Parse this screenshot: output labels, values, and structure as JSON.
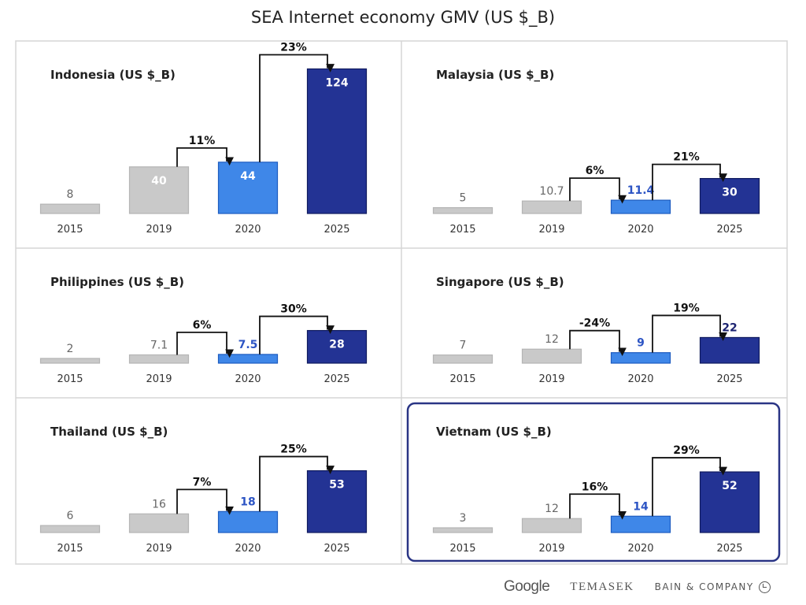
{
  "title": "SEA Internet economy GMV (US $_B)",
  "logos": {
    "google": "Google",
    "temasek": "TEMASEK",
    "bain": "BAIN & COMPANY"
  },
  "colors": {
    "y2015": "#c9c9c9",
    "y2019": "#c9c9c9",
    "y2020": "#3f87e8",
    "y2025": "#233394",
    "highlight_border": "#2a3585",
    "value_blue": "#2c54c4"
  },
  "chart_data": [
    {
      "type": "bar",
      "title": "Indonesia (US $_B)",
      "categories": [
        "2015",
        "2019",
        "2020",
        "2025"
      ],
      "values": [
        8,
        40,
        44,
        124
      ],
      "growth": [
        {
          "from": "2019",
          "to": "2020",
          "label": "11%"
        },
        {
          "from": "2020",
          "to": "2025",
          "label": "23%"
        }
      ],
      "highlighted": false
    },
    {
      "type": "bar",
      "title": "Malaysia (US $_B)",
      "categories": [
        "2015",
        "2019",
        "2020",
        "2025"
      ],
      "values": [
        5,
        10.7,
        11.4,
        30
      ],
      "growth": [
        {
          "from": "2019",
          "to": "2020",
          "label": "6%"
        },
        {
          "from": "2020",
          "to": "2025",
          "label": "21%"
        }
      ],
      "highlighted": false
    },
    {
      "type": "bar",
      "title": "Philippines (US $_B)",
      "categories": [
        "2015",
        "2019",
        "2020",
        "2025"
      ],
      "values": [
        2,
        7.1,
        7.5,
        28
      ],
      "growth": [
        {
          "from": "2019",
          "to": "2020",
          "label": "6%"
        },
        {
          "from": "2020",
          "to": "2025",
          "label": "30%"
        }
      ],
      "highlighted": false
    },
    {
      "type": "bar",
      "title": "Singapore (US $_B)",
      "categories": [
        "2015",
        "2019",
        "2020",
        "2025"
      ],
      "values": [
        7,
        12,
        9,
        22
      ],
      "growth": [
        {
          "from": "2019",
          "to": "2020",
          "label": "-24%"
        },
        {
          "from": "2020",
          "to": "2025",
          "label": "19%"
        }
      ],
      "highlighted": false
    },
    {
      "type": "bar",
      "title": "Thailand (US $_B)",
      "categories": [
        "2015",
        "2019",
        "2020",
        "2025"
      ],
      "values": [
        6,
        16,
        18,
        53
      ],
      "growth": [
        {
          "from": "2019",
          "to": "2020",
          "label": "7%"
        },
        {
          "from": "2020",
          "to": "2025",
          "label": "25%"
        }
      ],
      "highlighted": false
    },
    {
      "type": "bar",
      "title": "Vietnam (US $_B)",
      "categories": [
        "2015",
        "2019",
        "2020",
        "2025"
      ],
      "values": [
        3,
        12,
        14,
        52
      ],
      "growth": [
        {
          "from": "2019",
          "to": "2020",
          "label": "16%"
        },
        {
          "from": "2020",
          "to": "2025",
          "label": "29%"
        }
      ],
      "highlighted": true
    }
  ]
}
